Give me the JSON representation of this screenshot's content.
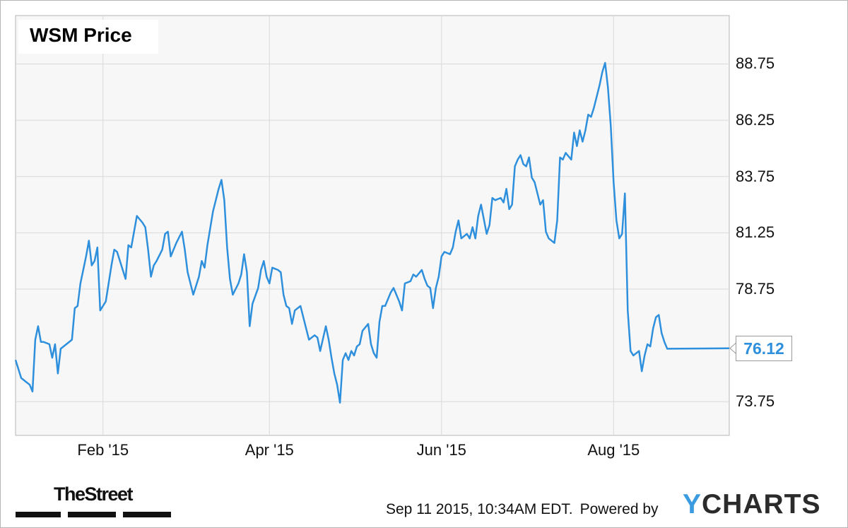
{
  "chart_data": {
    "type": "line",
    "title": "WSM Price",
    "y_ticks": [
      "88.75",
      "86.25",
      "83.75",
      "81.25",
      "78.75",
      "73.75"
    ],
    "x_ticks": [
      {
        "label": "Feb '15",
        "day": 32
      },
      {
        "label": "Apr '15",
        "day": 91
      },
      {
        "label": "Jun '15",
        "day": 152
      },
      {
        "label": "Aug '15",
        "day": 213
      }
    ],
    "ylim": [
      72.25,
      90.9
    ],
    "xlim": [
      1,
      254
    ],
    "last_value": 76.12,
    "last_value_label": "76.12",
    "line_color": "#2e8fdc",
    "grid": true,
    "series": [
      {
        "points": [
          [
            1,
            75.6
          ],
          [
            2,
            75.2
          ],
          [
            3,
            74.8
          ],
          [
            4,
            74.7
          ],
          [
            6,
            74.5
          ],
          [
            7,
            74.2
          ],
          [
            8,
            76.5
          ],
          [
            9,
            77.1
          ],
          [
            10,
            76.4
          ],
          [
            11,
            76.4
          ],
          [
            13,
            76.3
          ],
          [
            14,
            75.7
          ],
          [
            15,
            76.3
          ],
          [
            16,
            75.0
          ],
          [
            17,
            76.1
          ],
          [
            19,
            76.3
          ],
          [
            21,
            76.5
          ],
          [
            22,
            77.9
          ],
          [
            23,
            78.0
          ],
          [
            24,
            79.0
          ],
          [
            26,
            80.2
          ],
          [
            27,
            80.9
          ],
          [
            28,
            79.8
          ],
          [
            29,
            80.0
          ],
          [
            30,
            80.6
          ],
          [
            31,
            77.8
          ],
          [
            33,
            78.2
          ],
          [
            35,
            79.8
          ],
          [
            36,
            80.5
          ],
          [
            37,
            80.4
          ],
          [
            39,
            79.6
          ],
          [
            40,
            79.2
          ],
          [
            41,
            80.7
          ],
          [
            42,
            80.6
          ],
          [
            44,
            82.0
          ],
          [
            46,
            81.7
          ],
          [
            47,
            81.5
          ],
          [
            48,
            80.5
          ],
          [
            49,
            79.3
          ],
          [
            50,
            79.8
          ],
          [
            51,
            80.0
          ],
          [
            53,
            80.5
          ],
          [
            54,
            81.2
          ],
          [
            55,
            81.3
          ],
          [
            56,
            80.2
          ],
          [
            58,
            80.8
          ],
          [
            60,
            81.3
          ],
          [
            61,
            80.5
          ],
          [
            62,
            79.5
          ],
          [
            63,
            79.0
          ],
          [
            64,
            78.5
          ],
          [
            66,
            79.3
          ],
          [
            67,
            80.0
          ],
          [
            68,
            79.7
          ],
          [
            69,
            80.7
          ],
          [
            71,
            82.2
          ],
          [
            72,
            82.7
          ],
          [
            73,
            83.2
          ],
          [
            74,
            83.6
          ],
          [
            75,
            82.7
          ],
          [
            76,
            80.6
          ],
          [
            77,
            79.2
          ],
          [
            78,
            78.5
          ],
          [
            80,
            79.0
          ],
          [
            81,
            79.4
          ],
          [
            82,
            80.3
          ],
          [
            83,
            79.5
          ],
          [
            84,
            77.1
          ],
          [
            85,
            78.1
          ],
          [
            87,
            78.8
          ],
          [
            88,
            79.6
          ],
          [
            89,
            80.0
          ],
          [
            90,
            79.3
          ],
          [
            91,
            79.0
          ],
          [
            92,
            79.7
          ],
          [
            94,
            79.6
          ],
          [
            95,
            79.5
          ],
          [
            96,
            78.5
          ],
          [
            97,
            78.0
          ],
          [
            98,
            77.9
          ],
          [
            99,
            77.2
          ],
          [
            100,
            77.8
          ],
          [
            102,
            78.0
          ],
          [
            103,
            77.5
          ],
          [
            105,
            76.5
          ],
          [
            107,
            76.7
          ],
          [
            108,
            76.6
          ],
          [
            109,
            76.0
          ],
          [
            111,
            77.1
          ],
          [
            112,
            76.5
          ],
          [
            113,
            75.7
          ],
          [
            114,
            75.0
          ],
          [
            115,
            74.5
          ],
          [
            116,
            73.7
          ],
          [
            117,
            75.6
          ],
          [
            118,
            75.9
          ],
          [
            119,
            75.6
          ],
          [
            120,
            76.0
          ],
          [
            121,
            75.8
          ],
          [
            122,
            76.2
          ],
          [
            123,
            76.3
          ],
          [
            124,
            76.9
          ],
          [
            126,
            77.2
          ],
          [
            127,
            76.3
          ],
          [
            128,
            75.9
          ],
          [
            129,
            75.7
          ],
          [
            130,
            77.3
          ],
          [
            131,
            78.0
          ],
          [
            132,
            78.0
          ],
          [
            134,
            78.6
          ],
          [
            135,
            78.8
          ],
          [
            136,
            78.5
          ],
          [
            137,
            78.2
          ],
          [
            138,
            77.8
          ],
          [
            139,
            79.0
          ],
          [
            141,
            79.1
          ],
          [
            142,
            79.4
          ],
          [
            143,
            79.3
          ],
          [
            145,
            79.6
          ],
          [
            146,
            79.2
          ],
          [
            147,
            78.9
          ],
          [
            148,
            78.8
          ],
          [
            149,
            77.9
          ],
          [
            150,
            78.8
          ],
          [
            151,
            79.3
          ],
          [
            152,
            80.2
          ],
          [
            153,
            80.4
          ],
          [
            155,
            80.3
          ],
          [
            156,
            80.6
          ],
          [
            157,
            81.3
          ],
          [
            158,
            81.8
          ],
          [
            159,
            81.0
          ],
          [
            161,
            81.2
          ],
          [
            162,
            81.0
          ],
          [
            163,
            81.5
          ],
          [
            164,
            81.0
          ],
          [
            165,
            82.0
          ],
          [
            166,
            82.5
          ],
          [
            168,
            81.2
          ],
          [
            169,
            81.6
          ],
          [
            170,
            82.8
          ],
          [
            171,
            82.7
          ],
          [
            173,
            82.8
          ],
          [
            174,
            82.6
          ],
          [
            175,
            83.2
          ],
          [
            176,
            82.3
          ],
          [
            177,
            82.5
          ],
          [
            178,
            84.2
          ],
          [
            179,
            84.5
          ],
          [
            180,
            84.7
          ],
          [
            181,
            84.3
          ],
          [
            182,
            84.2
          ],
          [
            183,
            84.6
          ],
          [
            184,
            83.7
          ],
          [
            185,
            83.5
          ],
          [
            187,
            82.5
          ],
          [
            188,
            82.7
          ],
          [
            189,
            81.3
          ],
          [
            190,
            81.0
          ],
          [
            192,
            80.8
          ],
          [
            193,
            81.8
          ],
          [
            194,
            84.6
          ],
          [
            195,
            84.5
          ],
          [
            196,
            84.8
          ],
          [
            198,
            84.5
          ],
          [
            199,
            85.7
          ],
          [
            200,
            85.1
          ],
          [
            201,
            85.8
          ],
          [
            202,
            85.3
          ],
          [
            203,
            85.8
          ],
          [
            204,
            86.5
          ],
          [
            205,
            86.4
          ],
          [
            206,
            86.8
          ],
          [
            207,
            87.3
          ],
          [
            208,
            87.8
          ],
          [
            209,
            88.4
          ],
          [
            210,
            88.8
          ],
          [
            211,
            87.7
          ],
          [
            212,
            86.0
          ],
          [
            213,
            83.5
          ],
          [
            214,
            81.8
          ],
          [
            215,
            81.0
          ],
          [
            216,
            81.2
          ],
          [
            217,
            83.0
          ],
          [
            218,
            77.8
          ],
          [
            219,
            76.0
          ],
          [
            220,
            75.8
          ],
          [
            221,
            75.9
          ],
          [
            222,
            76.0
          ],
          [
            223,
            75.1
          ],
          [
            224,
            75.8
          ],
          [
            225,
            76.3
          ],
          [
            226,
            76.2
          ],
          [
            227,
            77.0
          ],
          [
            228,
            77.5
          ],
          [
            229,
            77.6
          ],
          [
            230,
            76.8
          ],
          [
            231,
            76.4
          ],
          [
            232,
            76.1
          ],
          [
            254,
            76.12
          ]
        ]
      }
    ]
  },
  "footer": {
    "timestamp": "Sep 11 2015, 10:34AM EDT.",
    "powered_by": "Powered by",
    "ycharts_y": "Y",
    "ycharts_rest": "CHARTS"
  },
  "branding": {
    "thestreet": "TheStreet"
  }
}
